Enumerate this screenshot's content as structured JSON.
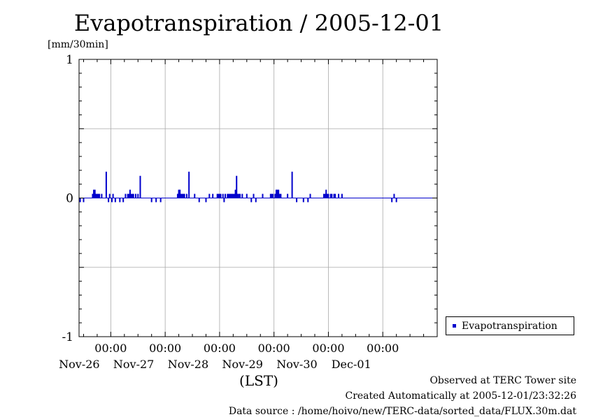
{
  "header": {
    "title": "Evapotranspiration / 2005-12-01",
    "unit_label": "[mm/30min]"
  },
  "footer": {
    "xaxis_caption": "(LST)",
    "observed": "Observed at TERC Tower site",
    "created": "Created Automatically at 2005-12-01/23:32:26",
    "source": "Data source : /home/hoivo/new/TERC-data/sorted_data/FLUX.30m.dat"
  },
  "colors": {
    "series": "#0000cc",
    "grid": "#aaaaaa",
    "axis": "#000000"
  },
  "chart_data": {
    "type": "bar",
    "title": "Evapotranspiration / 2005-12-01",
    "ylabel": "[mm/30min]",
    "xlabel": "(LST)",
    "ylim": [
      -1,
      1
    ],
    "yticks": [
      {
        "value": 1,
        "label": "1"
      },
      {
        "value": 0,
        "label": "0"
      },
      {
        "value": -1,
        "label": "-1"
      }
    ],
    "xlim": [
      "2005-11-25 10:00",
      "2005-12-01 24:00"
    ],
    "xticks": [
      {
        "t": "2005-11-26 00:00",
        "time": "00:00",
        "date": "Nov-26"
      },
      {
        "t": "2005-11-27 00:00",
        "time": "00:00",
        "date": "Nov-27"
      },
      {
        "t": "2005-11-28 00:00",
        "time": "00:00",
        "date": "Nov-28"
      },
      {
        "t": "2005-11-29 00:00",
        "time": "00:00",
        "date": "Nov-29"
      },
      {
        "t": "2005-11-30 00:00",
        "time": "00:00",
        "date": "Nov-30"
      },
      {
        "t": "2005-12-01 00:00",
        "time": "00:00",
        "date": "Dec-01"
      }
    ],
    "grid": true,
    "legend_position": "right-bottom, outside plot",
    "series": [
      {
        "name": "Evapotranspiration",
        "color": "#0000cc",
        "points": [
          [
            "2005-11-25 10:30",
            -0.03
          ],
          [
            "2005-11-25 12:00",
            -0.03
          ],
          [
            "2005-11-25 16:00",
            0.03
          ],
          [
            "2005-11-25 16:30",
            0.06
          ],
          [
            "2005-11-25 17:00",
            0.06
          ],
          [
            "2005-11-25 17:30",
            0.03
          ],
          [
            "2005-11-25 18:00",
            0.03
          ],
          [
            "2005-11-25 18:30",
            0.03
          ],
          [
            "2005-11-25 19:00",
            0.03
          ],
          [
            "2005-11-25 20:00",
            0.03
          ],
          [
            "2005-11-25 22:00",
            0.19
          ],
          [
            "2005-11-25 23:00",
            -0.03
          ],
          [
            "2005-11-25 23:30",
            0.03
          ],
          [
            "2005-11-26 00:30",
            -0.03
          ],
          [
            "2005-11-26 01:00",
            0.03
          ],
          [
            "2005-11-26 02:00",
            -0.03
          ],
          [
            "2005-11-26 04:00",
            -0.03
          ],
          [
            "2005-11-26 05:30",
            -0.03
          ],
          [
            "2005-11-26 06:30",
            0.03
          ],
          [
            "2005-11-26 07:30",
            0.03
          ],
          [
            "2005-11-26 08:00",
            0.03
          ],
          [
            "2005-11-26 08:30",
            0.06
          ],
          [
            "2005-11-26 09:00",
            0.03
          ],
          [
            "2005-11-26 09:30",
            0.03
          ],
          [
            "2005-11-26 10:00",
            0.03
          ],
          [
            "2005-11-26 11:00",
            0.03
          ],
          [
            "2005-11-26 12:00",
            0.03
          ],
          [
            "2005-11-26 13:00",
            0.16
          ],
          [
            "2005-11-26 18:00",
            -0.03
          ],
          [
            "2005-11-26 20:00",
            -0.03
          ],
          [
            "2005-11-26 22:00",
            -0.03
          ],
          [
            "2005-11-27 05:30",
            0.03
          ],
          [
            "2005-11-27 06:00",
            0.06
          ],
          [
            "2005-11-27 06:30",
            0.06
          ],
          [
            "2005-11-27 07:00",
            0.03
          ],
          [
            "2005-11-27 07:30",
            0.03
          ],
          [
            "2005-11-27 08:00",
            0.03
          ],
          [
            "2005-11-27 08:30",
            0.03
          ],
          [
            "2005-11-27 09:30",
            0.03
          ],
          [
            "2005-11-27 10:30",
            0.19
          ],
          [
            "2005-11-27 13:00",
            0.03
          ],
          [
            "2005-11-27 15:00",
            -0.03
          ],
          [
            "2005-11-27 18:00",
            -0.03
          ],
          [
            "2005-11-27 19:30",
            0.03
          ],
          [
            "2005-11-27 21:00",
            0.03
          ],
          [
            "2005-11-27 23:00",
            0.03
          ],
          [
            "2005-11-27 23:30",
            0.03
          ],
          [
            "2005-11-28 00:00",
            0.03
          ],
          [
            "2005-11-28 00:30",
            0.03
          ],
          [
            "2005-11-28 01:30",
            0.03
          ],
          [
            "2005-11-28 02:00",
            -0.03
          ],
          [
            "2005-11-28 02:30",
            0.03
          ],
          [
            "2005-11-28 03:30",
            0.03
          ],
          [
            "2005-11-28 04:00",
            0.03
          ],
          [
            "2005-11-28 04:30",
            0.03
          ],
          [
            "2005-11-28 05:00",
            0.03
          ],
          [
            "2005-11-28 05:30",
            0.03
          ],
          [
            "2005-11-28 06:00",
            0.03
          ],
          [
            "2005-11-28 06:30",
            0.03
          ],
          [
            "2005-11-28 07:00",
            0.06
          ],
          [
            "2005-11-28 07:30",
            0.16
          ],
          [
            "2005-11-28 08:00",
            0.03
          ],
          [
            "2005-11-28 08:30",
            0.03
          ],
          [
            "2005-11-28 09:00",
            0.03
          ],
          [
            "2005-11-28 10:00",
            0.03
          ],
          [
            "2005-11-28 12:00",
            0.03
          ],
          [
            "2005-11-28 14:00",
            -0.03
          ],
          [
            "2005-11-28 15:00",
            0.03
          ],
          [
            "2005-11-28 16:00",
            -0.03
          ],
          [
            "2005-11-28 19:00",
            0.03
          ],
          [
            "2005-11-28 22:30",
            0.03
          ],
          [
            "2005-11-28 23:00",
            0.03
          ],
          [
            "2005-11-28 23:30",
            0.03
          ],
          [
            "2005-11-29 00:30",
            0.03
          ],
          [
            "2005-11-29 01:00",
            0.06
          ],
          [
            "2005-11-29 01:30",
            0.06
          ],
          [
            "2005-11-29 02:00",
            0.06
          ],
          [
            "2005-11-29 02:30",
            0.03
          ],
          [
            "2005-11-29 03:00",
            0.03
          ],
          [
            "2005-11-29 06:00",
            0.03
          ],
          [
            "2005-11-29 08:00",
            0.19
          ],
          [
            "2005-11-29 10:00",
            -0.03
          ],
          [
            "2005-11-29 13:00",
            -0.03
          ],
          [
            "2005-11-29 15:00",
            -0.03
          ],
          [
            "2005-11-29 16:00",
            0.03
          ],
          [
            "2005-11-29 22:00",
            0.03
          ],
          [
            "2005-11-29 22:30",
            0.03
          ],
          [
            "2005-11-29 23:00",
            0.06
          ],
          [
            "2005-11-29 23:30",
            0.03
          ],
          [
            "2005-11-30 00:00",
            0.03
          ],
          [
            "2005-11-30 01:00",
            0.03
          ],
          [
            "2005-11-30 01:30",
            0.03
          ],
          [
            "2005-11-30 02:30",
            0.03
          ],
          [
            "2005-11-30 03:00",
            0.03
          ],
          [
            "2005-11-30 04:30",
            0.03
          ],
          [
            "2005-11-30 06:00",
            0.03
          ],
          [
            "2005-12-01 04:00",
            -0.03
          ],
          [
            "2005-12-01 05:00",
            0.03
          ],
          [
            "2005-12-01 06:00",
            -0.03
          ]
        ]
      }
    ]
  }
}
